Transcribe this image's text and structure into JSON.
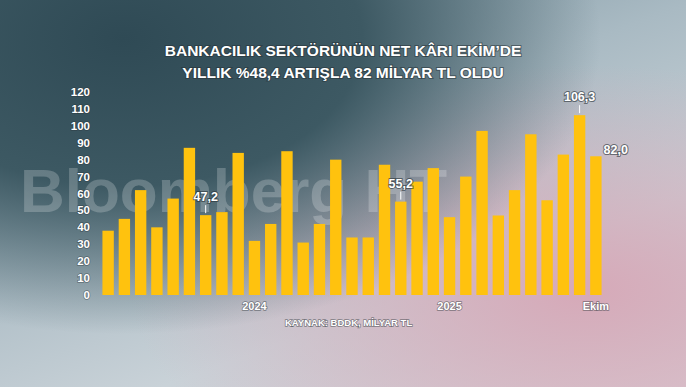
{
  "chart_data": {
    "type": "bar",
    "title": [
      "BANKACILIK SEKTÖRÜNÜN NET KÂRI EKİM’DE",
      "YILLIK %48,4 ARTIŞLA 82 MİLYAR TL OLDU"
    ],
    "source": "KAYNAK: BDDK, MİLYAR TL",
    "watermark": "Bloomberg HT",
    "categories": [
      null,
      null,
      null,
      null,
      null,
      null,
      null,
      null,
      null,
      "2024",
      null,
      null,
      null,
      null,
      null,
      null,
      null,
      null,
      null,
      null,
      null,
      "2025",
      null,
      null,
      null,
      null,
      null,
      null,
      null,
      null,
      "Ekim"
    ],
    "values": [
      38,
      45,
      62,
      40,
      57,
      87,
      47.2,
      49,
      84,
      32,
      42,
      85,
      31,
      42,
      80,
      34,
      34,
      77,
      55.2,
      67,
      75,
      46,
      70,
      97,
      47,
      62,
      95,
      56,
      83,
      106.3,
      82
    ],
    "value_labels": [
      null,
      null,
      null,
      null,
      null,
      null,
      "47,2",
      null,
      null,
      null,
      null,
      null,
      null,
      null,
      null,
      null,
      null,
      null,
      "55,2",
      null,
      null,
      null,
      null,
      null,
      null,
      null,
      null,
      null,
      null,
      "106,3",
      "82,0"
    ],
    "data_labels": true,
    "color": "#ffc20e",
    "ylim": [
      0,
      120
    ],
    "yticks": [
      0,
      10,
      20,
      30,
      40,
      50,
      60,
      70,
      80,
      90,
      100,
      110,
      120
    ],
    "grid": false
  }
}
